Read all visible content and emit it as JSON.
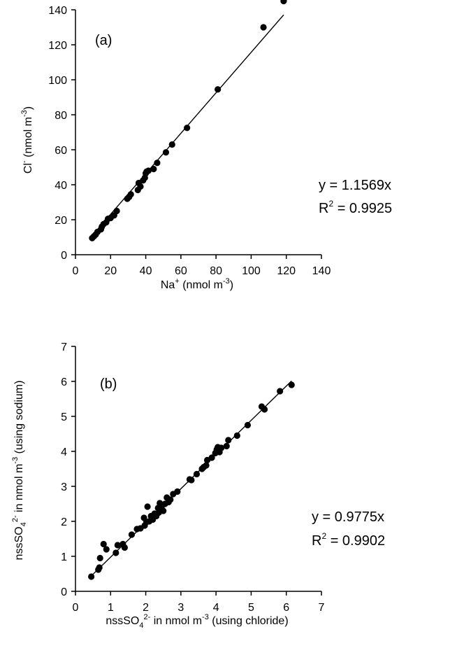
{
  "charts": [
    {
      "panel_label": "(a)",
      "equation": "y = 1.1569x",
      "r2_label": "R",
      "r2_sup": "2",
      "r2_value": " = 0.9925",
      "xlabel_main": "Na",
      "xlabel_sup": "+",
      "xlabel_unit": " (nmol m",
      "xlabel_unit_sup": "-3",
      "xlabel_close": ")",
      "ylabel_main": "Cl",
      "ylabel_sup": "-",
      "ylabel_unit": " (nmol m",
      "ylabel_unit_sup": "-3",
      "ylabel_close": ")"
    },
    {
      "panel_label": "(b)",
      "equation": "y = 0.9775x",
      "r2_label": "R",
      "r2_sup": "2",
      "r2_value": " = 0.9902",
      "xlabel_main": "nssSO",
      "xlabel_sub": "4",
      "xlabel_sup": "2-",
      "xlabel_unit": " in nmol m",
      "xlabel_unit_sup": "-3",
      "xlabel_close": " (using chloride)",
      "ylabel_main": "nssSO",
      "ylabel_sub": "4",
      "ylabel_sup": "2-",
      "ylabel_unit": " in nmol m",
      "ylabel_unit_sup": "-3",
      "ylabel_close": " (using sodium)"
    }
  ],
  "chart_data": [
    {
      "type": "scatter",
      "xlim": [
        0,
        140
      ],
      "ylim": [
        0,
        140
      ],
      "xticks": [
        0,
        20,
        40,
        60,
        80,
        100,
        120,
        140
      ],
      "yticks": [
        0,
        20,
        40,
        60,
        80,
        100,
        120,
        140
      ],
      "fit_slope": 1.1569,
      "fit_x_range": [
        9.5,
        118.5
      ],
      "grid": false,
      "marker_color": "#000000",
      "points": [
        [
          9.5,
          9.5
        ],
        [
          10.5,
          10.5
        ],
        [
          11.5,
          11.5
        ],
        [
          12.5,
          13
        ],
        [
          14.5,
          14.5
        ],
        [
          15,
          16
        ],
        [
          16,
          17.5
        ],
        [
          17.5,
          18.5
        ],
        [
          18.5,
          20.5
        ],
        [
          20,
          21
        ],
        [
          22,
          22.5
        ],
        [
          23.5,
          25
        ],
        [
          29.5,
          32
        ],
        [
          30.5,
          33
        ],
        [
          31.5,
          34.5
        ],
        [
          35.5,
          37
        ],
        [
          36,
          41
        ],
        [
          37,
          39
        ],
        [
          38.5,
          42.5
        ],
        [
          39.5,
          44
        ],
        [
          40,
          46.5
        ],
        [
          40.5,
          47.5
        ],
        [
          41.5,
          48
        ],
        [
          44.5,
          49
        ],
        [
          46.5,
          52.5
        ],
        [
          51.5,
          58.5
        ],
        [
          55,
          63
        ],
        [
          63.5,
          72.5
        ],
        [
          81,
          94.5
        ],
        [
          107,
          130
        ],
        [
          118.5,
          145
        ]
      ]
    },
    {
      "type": "scatter",
      "xlim": [
        0,
        7
      ],
      "ylim": [
        0,
        7
      ],
      "xticks": [
        0,
        1,
        2,
        3,
        4,
        5,
        6,
        7
      ],
      "yticks": [
        0,
        1,
        2,
        3,
        4,
        5,
        6,
        7
      ],
      "fit_slope": 0.9775,
      "fit_x_range": [
        0.45,
        6.15
      ],
      "grid": false,
      "marker_color": "#000000",
      "points": [
        [
          0.45,
          0.42
        ],
        [
          0.65,
          0.62
        ],
        [
          0.68,
          0.68
        ],
        [
          0.7,
          0.95
        ],
        [
          0.8,
          1.35
        ],
        [
          0.88,
          1.2
        ],
        [
          1.15,
          1.1
        ],
        [
          1.2,
          1.32
        ],
        [
          1.35,
          1.35
        ],
        [
          1.4,
          1.25
        ],
        [
          1.6,
          1.62
        ],
        [
          1.75,
          1.78
        ],
        [
          1.85,
          1.8
        ],
        [
          1.95,
          2.1
        ],
        [
          1.97,
          1.88
        ],
        [
          2.02,
          1.98
        ],
        [
          2.05,
          2.42
        ],
        [
          2.1,
          2.0
        ],
        [
          2.15,
          2.15
        ],
        [
          2.2,
          2.05
        ],
        [
          2.25,
          2.22
        ],
        [
          2.3,
          2.15
        ],
        [
          2.35,
          2.38
        ],
        [
          2.37,
          2.25
        ],
        [
          2.4,
          2.52
        ],
        [
          2.42,
          2.32
        ],
        [
          2.45,
          2.42
        ],
        [
          2.5,
          2.3
        ],
        [
          2.55,
          2.5
        ],
        [
          2.6,
          2.68
        ],
        [
          2.65,
          2.55
        ],
        [
          2.7,
          2.62
        ],
        [
          2.78,
          2.78
        ],
        [
          2.9,
          2.85
        ],
        [
          3.25,
          3.2
        ],
        [
          3.3,
          3.18
        ],
        [
          3.45,
          3.35
        ],
        [
          3.6,
          3.5
        ],
        [
          3.65,
          3.55
        ],
        [
          3.72,
          3.6
        ],
        [
          3.75,
          3.75
        ],
        [
          3.88,
          3.82
        ],
        [
          3.98,
          3.95
        ],
        [
          4.02,
          4.05
        ],
        [
          4.05,
          4.12
        ],
        [
          4.1,
          3.98
        ],
        [
          4.15,
          4.1
        ],
        [
          4.3,
          4.15
        ],
        [
          4.35,
          4.32
        ],
        [
          4.6,
          4.45
        ],
        [
          4.9,
          4.75
        ],
        [
          5.3,
          5.28
        ],
        [
          5.38,
          5.2
        ],
        [
          5.82,
          5.72
        ],
        [
          6.15,
          5.9
        ]
      ]
    }
  ]
}
